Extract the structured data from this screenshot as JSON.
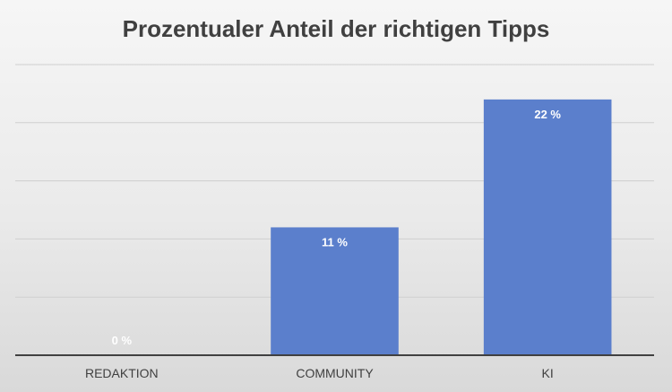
{
  "chart_data": {
    "type": "bar",
    "title": "Prozentualer Anteil der richtigen Tipps",
    "categories": [
      "REDAKTION",
      "COMMUNITY",
      "KI"
    ],
    "values": [
      0,
      11,
      22
    ],
    "data_labels": [
      "0 %",
      "11 %",
      "22 %"
    ],
    "ylim": [
      0,
      25
    ],
    "grid": true,
    "legend": "none",
    "bar_color": "#5b7fcc"
  }
}
